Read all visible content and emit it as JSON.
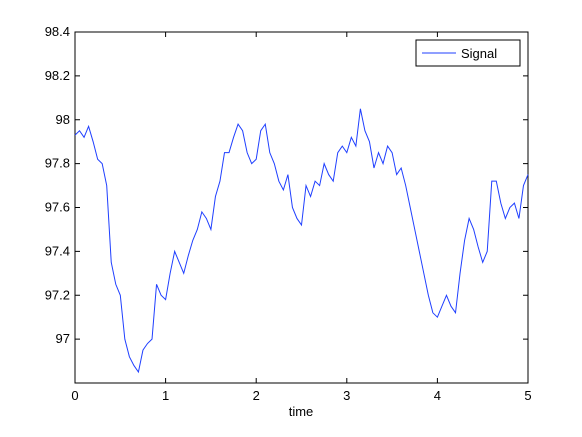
{
  "chart_data": {
    "type": "line",
    "xlabel": "time",
    "x": [
      0,
      0.05,
      0.1,
      0.15,
      0.2,
      0.25,
      0.3,
      0.35,
      0.4,
      0.45,
      0.5,
      0.55,
      0.6,
      0.65,
      0.7,
      0.75,
      0.8,
      0.85,
      0.9,
      0.95,
      1,
      1.05,
      1.1,
      1.15,
      1.2,
      1.25,
      1.3,
      1.35,
      1.4,
      1.45,
      1.5,
      1.55,
      1.6,
      1.65,
      1.7,
      1.75,
      1.8,
      1.85,
      1.9,
      1.95,
      2,
      2.05,
      2.1,
      2.15,
      2.2,
      2.25,
      2.3,
      2.35,
      2.4,
      2.45,
      2.5,
      2.55,
      2.6,
      2.65,
      2.7,
      2.75,
      2.8,
      2.85,
      2.9,
      2.95,
      3,
      3.05,
      3.1,
      3.15,
      3.2,
      3.25,
      3.3,
      3.35,
      3.4,
      3.45,
      3.5,
      3.55,
      3.6,
      3.65,
      3.7,
      3.75,
      3.8,
      3.85,
      3.9,
      3.95,
      4,
      4.05,
      4.1,
      4.15,
      4.2,
      4.25,
      4.3,
      4.35,
      4.4,
      4.45,
      4.5,
      4.55,
      4.6,
      4.65,
      4.7,
      4.75,
      4.8,
      4.85,
      4.9,
      4.95,
      5
    ],
    "series": [
      {
        "name": "Signal",
        "color": "#1f3fff",
        "values": [
          97.93,
          97.95,
          97.92,
          97.97,
          97.9,
          97.82,
          97.8,
          97.7,
          97.35,
          97.25,
          97.2,
          97.0,
          96.92,
          96.88,
          96.85,
          96.95,
          96.98,
          97.0,
          97.25,
          97.2,
          97.18,
          97.3,
          97.4,
          97.35,
          97.3,
          97.38,
          97.45,
          97.5,
          97.58,
          97.55,
          97.5,
          97.65,
          97.72,
          97.85,
          97.85,
          97.92,
          97.98,
          97.95,
          97.85,
          97.8,
          97.82,
          97.95,
          97.98,
          97.85,
          97.8,
          97.72,
          97.68,
          97.75,
          97.6,
          97.55,
          97.52,
          97.7,
          97.65,
          97.72,
          97.7,
          97.8,
          97.75,
          97.72,
          97.85,
          97.88,
          97.85,
          97.92,
          97.88,
          98.05,
          97.95,
          97.9,
          97.78,
          97.85,
          97.8,
          97.88,
          97.85,
          97.75,
          97.78,
          97.7,
          97.6,
          97.5,
          97.4,
          97.3,
          97.2,
          97.12,
          97.1,
          97.15,
          97.2,
          97.15,
          97.12,
          97.3,
          97.45,
          97.55,
          97.5,
          97.42,
          97.35,
          97.4,
          97.72,
          97.72,
          97.62,
          97.55,
          97.6,
          97.62,
          97.55,
          97.7,
          97.75
        ]
      }
    ],
    "xlim": [
      0,
      5
    ],
    "xticks": [
      0,
      1,
      2,
      3,
      4,
      5
    ],
    "ylim": [
      96.8,
      98.4
    ],
    "yticks": [
      97,
      97.2,
      97.4,
      97.6,
      97.8,
      98,
      98.2,
      98.4
    ],
    "legend": "top-right"
  }
}
